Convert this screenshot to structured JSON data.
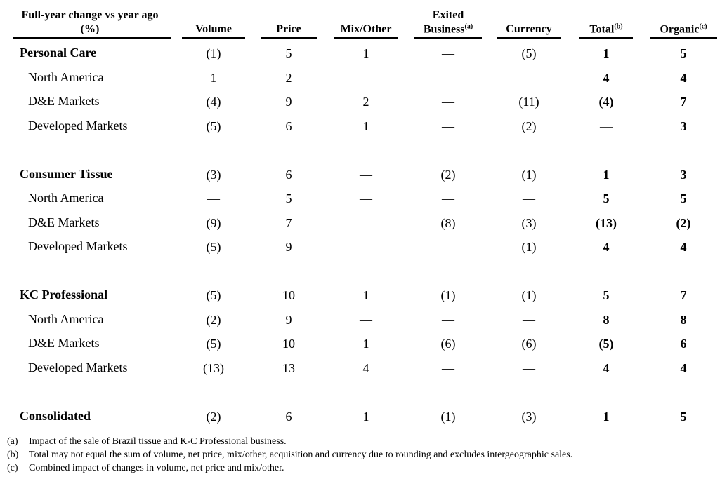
{
  "header": {
    "label_lines": [
      "Full-year change vs year ago",
      "(%)"
    ],
    "columns": [
      {
        "text": "Volume"
      },
      {
        "text": "Price"
      },
      {
        "text": "Mix/Other"
      },
      {
        "above": "Exited",
        "text": "Business",
        "sup": "(a)"
      },
      {
        "text": "Currency"
      },
      {
        "text": "Total",
        "sup": "(b)"
      },
      {
        "text": "Organic",
        "sup": "(c)"
      }
    ]
  },
  "groups": [
    {
      "rows": [
        [
          "Personal Care",
          "(1)",
          "5",
          "1",
          "—",
          "(5)",
          "1",
          "5"
        ],
        [
          "North America",
          "1",
          "2",
          "—",
          "—",
          "—",
          "4",
          "4"
        ],
        [
          "D&E Markets",
          "(4)",
          "9",
          "2",
          "—",
          "(11)",
          "(4)",
          "7"
        ],
        [
          "Developed Markets",
          "(5)",
          "6",
          "1",
          "—",
          "(2)",
          "—",
          "3"
        ]
      ]
    },
    {
      "rows": [
        [
          "Consumer Tissue",
          "(3)",
          "6",
          "—",
          "(2)",
          "(1)",
          "1",
          "3"
        ],
        [
          "North America",
          "—",
          "5",
          "—",
          "—",
          "—",
          "5",
          "5"
        ],
        [
          "D&E Markets",
          "(9)",
          "7",
          "—",
          "(8)",
          "(3)",
          "(13)",
          "(2)"
        ],
        [
          "Developed Markets",
          "(5)",
          "9",
          "—",
          "—",
          "(1)",
          "4",
          "4"
        ]
      ]
    },
    {
      "rows": [
        [
          "KC Professional",
          "(5)",
          "10",
          "1",
          "(1)",
          "(1)",
          "5",
          "7"
        ],
        [
          "North America",
          "(2)",
          "9",
          "—",
          "—",
          "—",
          "8",
          "8"
        ],
        [
          "D&E Markets",
          "(5)",
          "10",
          "1",
          "(6)",
          "(6)",
          "(5)",
          "6"
        ],
        [
          "Developed Markets",
          "(13)",
          "13",
          "4",
          "—",
          "—",
          "4",
          "4"
        ]
      ]
    },
    {
      "rows": [
        [
          "Consolidated",
          "(2)",
          "6",
          "1",
          "(1)",
          "(3)",
          "1",
          "5"
        ]
      ]
    }
  ],
  "footnotes": [
    {
      "marker": "(a)",
      "text": "Impact of the sale of Brazil tissue and K-C Professional business."
    },
    {
      "marker": "(b)",
      "text": "Total may not equal the sum of volume, net price, mix/other, acquisition and currency due to rounding and excludes intergeographic sales."
    },
    {
      "marker": "(c)",
      "text": "Combined impact of changes in volume, net price and mix/other."
    }
  ]
}
